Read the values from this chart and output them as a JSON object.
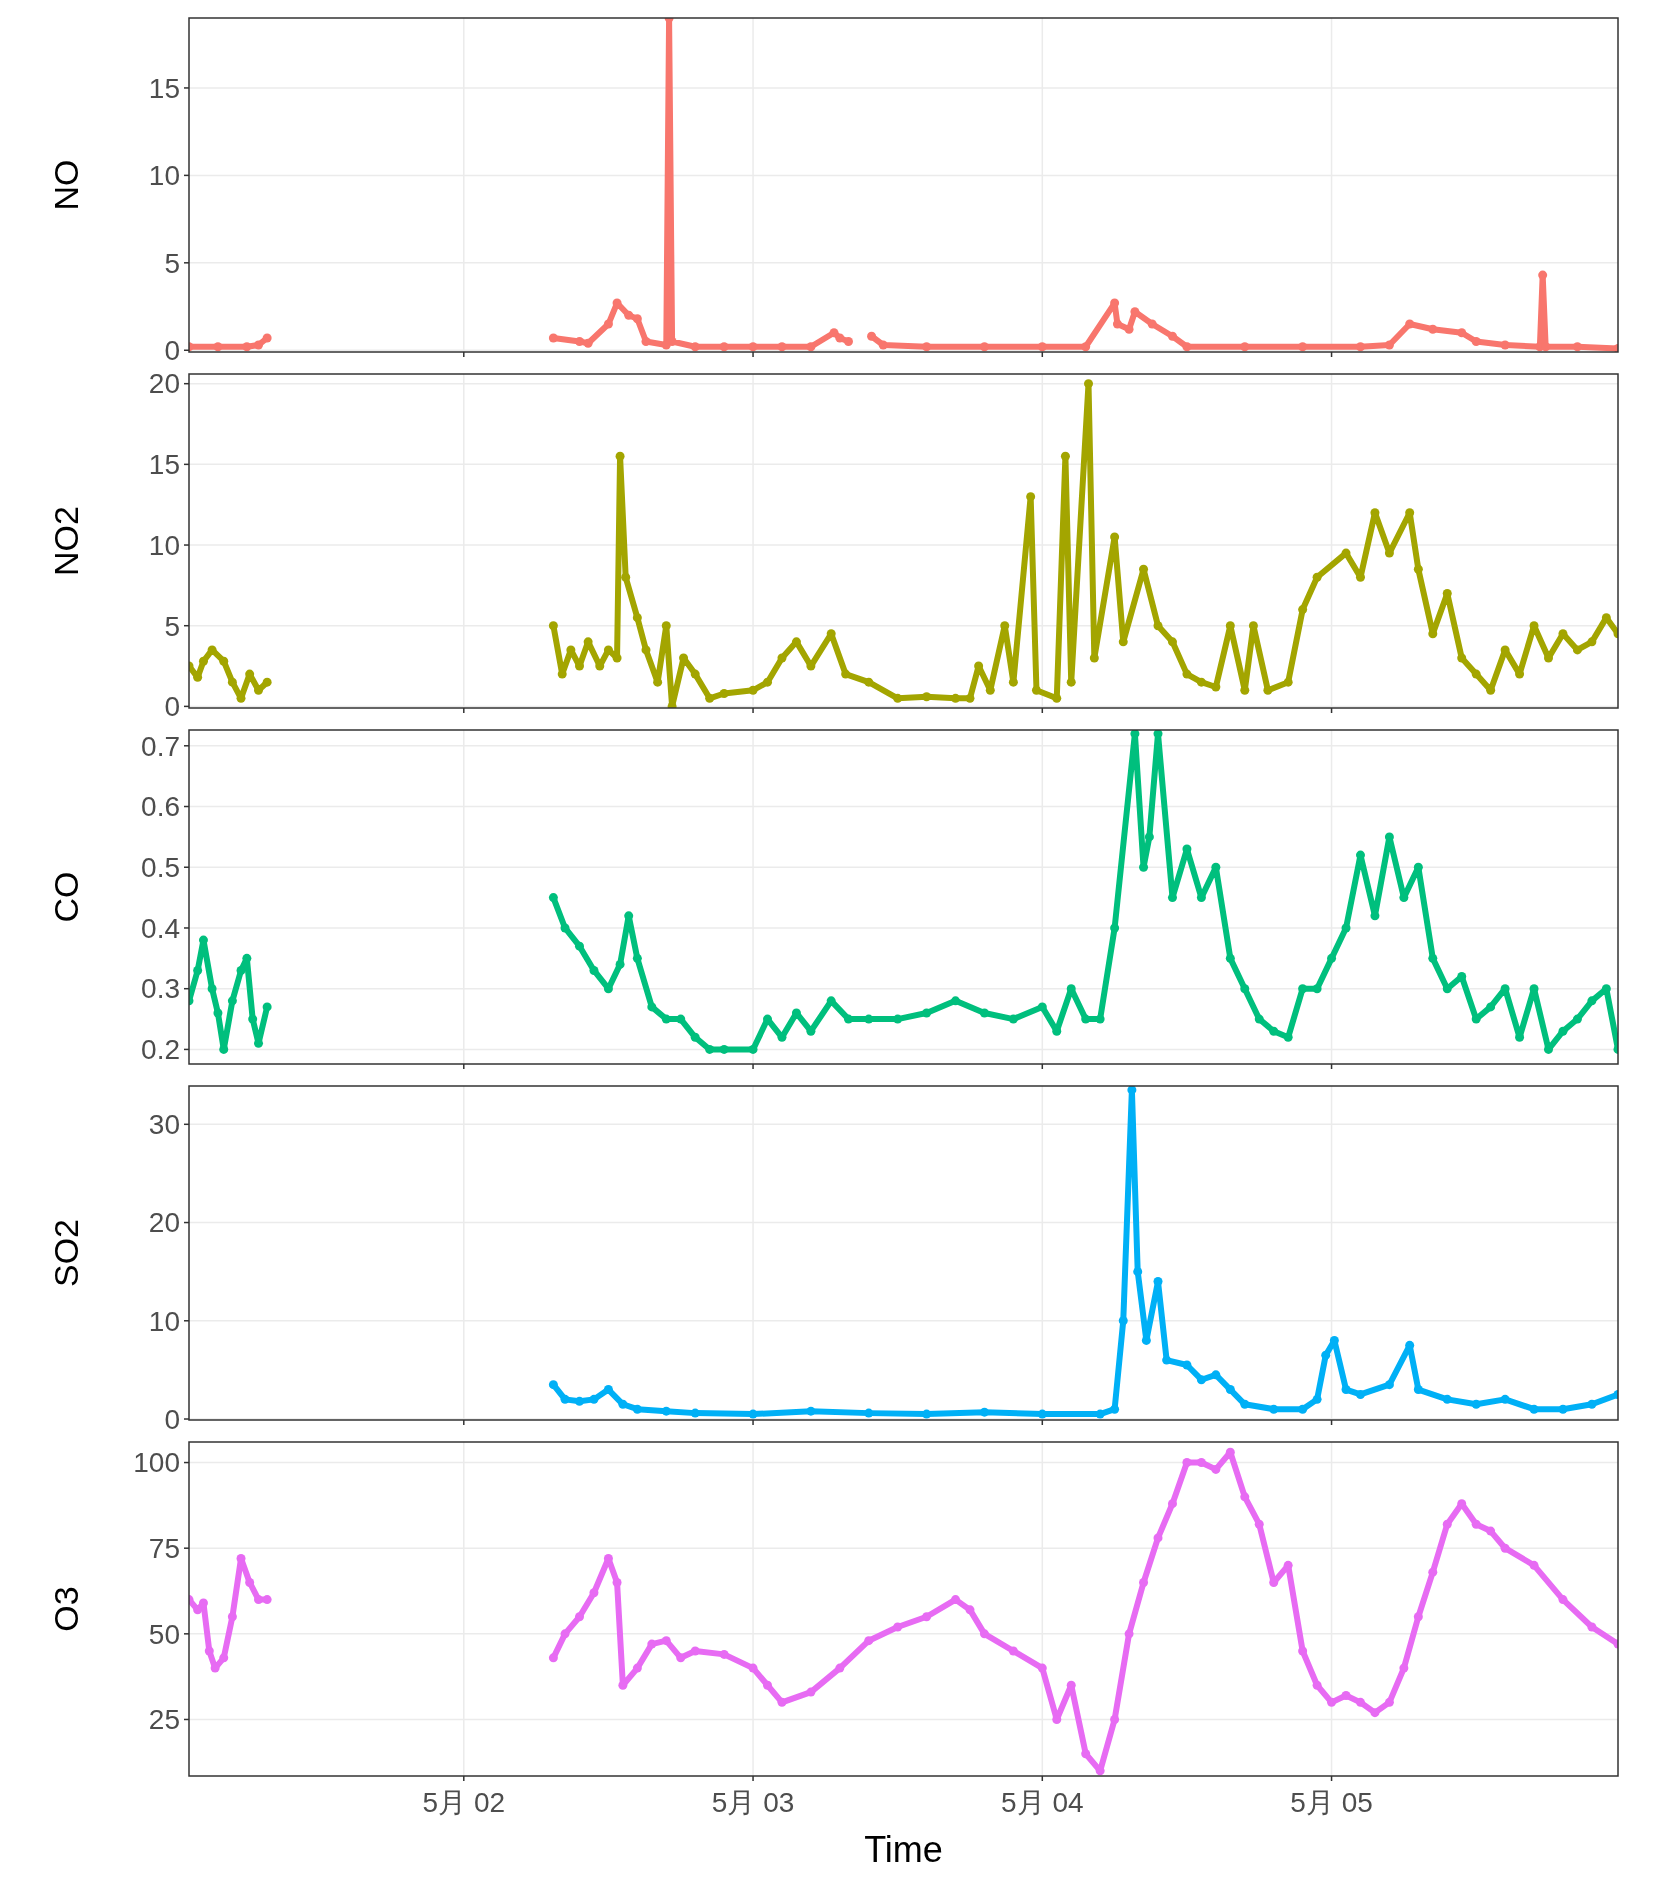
{
  "chart_data": [
    {
      "type": "line",
      "ylabel": "NO",
      "xlim": [
        "--05-01T01:12",
        "--05-05T23:46"
      ],
      "ylim": [
        -0.1,
        19
      ],
      "yticks": [
        0,
        5,
        10,
        15
      ],
      "xticks": [
        {
          "value": "--05-02",
          "label": null
        },
        {
          "value": "--05-03",
          "label": null
        },
        {
          "value": "--05-04",
          "label": null
        },
        {
          "value": "--05-05",
          "label": null
        }
      ],
      "tick_labels": "y",
      "grid": true,
      "marker": "circle",
      "series": [
        {
          "color": "#f8766d",
          "x": [
            "--05-01T01:12",
            "--05-01T03:36",
            "--05-01T06:00",
            "--05-01T06:58",
            "--05-01T07:41",
            "--05-02T00:00",
            "--05-02T07:26",
            "--05-02T09:36",
            "--05-02T10:19",
            "--05-02T12:00",
            "--05-02T12:43",
            "--05-02T13:41",
            "--05-02T14:24",
            "--05-02T15:07",
            "--05-02T16:48",
            "--05-02T17:02",
            "--05-02T17:17",
            "--05-02T19:12",
            "--05-02T21:36",
            "--05-03T00:00",
            "--05-03T02:24",
            "--05-03T04:48",
            "--05-03T06:43",
            "--05-03T07:12",
            "--05-03T07:55",
            "--05-03T08:53",
            "--05-03T09:50",
            "--05-03T10:48",
            "--05-03T14:24",
            "--05-03T19:12",
            "--05-04T00:00",
            "--05-04T03:36",
            "--05-04T06:00",
            "--05-04T06:14",
            "--05-04T07:12",
            "--05-04T07:41",
            "--05-04T09:07",
            "--05-04T10:48",
            "--05-04T12:00",
            "--05-04T16:48",
            "--05-04T21:36",
            "--05-05T02:24",
            "--05-05T04:48",
            "--05-05T06:29",
            "--05-05T08:24",
            "--05-05T10:48",
            "--05-05T12:00",
            "--05-05T14:24",
            "--05-05T17:17",
            "--05-05T17:31",
            "--05-05T17:46",
            "--05-05T20:24",
            "--05-05T23:46"
          ],
          "values": [
            0.2,
            0.2,
            0.2,
            0.3,
            0.7,
            null,
            0.7,
            0.5,
            0.4,
            1.5,
            2.7,
            2.0,
            1.8,
            0.5,
            0.3,
            19,
            0.5,
            0.2,
            0.2,
            0.2,
            0.2,
            0.2,
            1.0,
            0.7,
            0.5,
            null,
            0.8,
            0.3,
            0.2,
            0.2,
            0.2,
            0.2,
            2.7,
            1.5,
            1.2,
            2.2,
            1.5,
            0.8,
            0.2,
            0.2,
            0.2,
            0.2,
            0.3,
            1.5,
            1.2,
            1.0,
            0.5,
            0.3,
            0.2,
            4.3,
            0.2,
            0.2,
            0.1
          ]
        }
      ]
    },
    {
      "type": "line",
      "ylabel": "NO2",
      "xlim": [
        "--05-01T01:12",
        "--05-05T23:46"
      ],
      "ylim": [
        -0.1,
        20.6
      ],
      "yticks": [
        0,
        5,
        10,
        15,
        20
      ],
      "xticks": [
        {
          "value": "--05-02",
          "label": null
        },
        {
          "value": "--05-03",
          "label": null
        },
        {
          "value": "--05-04",
          "label": null
        },
        {
          "value": "--05-05",
          "label": null
        }
      ],
      "tick_labels": "y",
      "grid": true,
      "marker": "circle",
      "series": [
        {
          "color": "#a3a500",
          "x": [
            "--05-01T01:12",
            "--05-01T01:55",
            "--05-01T02:24",
            "--05-01T03:07",
            "--05-01T04:05",
            "--05-01T04:48",
            "--05-01T05:31",
            "--05-01T06:14",
            "--05-01T06:58",
            "--05-01T07:41",
            "--05-02T00:00",
            "--05-02T07:26",
            "--05-02T08:10",
            "--05-02T08:53",
            "--05-02T09:36",
            "--05-02T10:19",
            "--05-02T11:17",
            "--05-02T12:00",
            "--05-02T12:43",
            "--05-02T12:58",
            "--05-02T13:26",
            "--05-02T14:24",
            "--05-02T15:07",
            "--05-02T16:05",
            "--05-02T16:48",
            "--05-02T17:17",
            "--05-02T18:14",
            "--05-02T19:12",
            "--05-02T20:24",
            "--05-02T21:36",
            "--05-03T00:00",
            "--05-03T01:12",
            "--05-03T02:24",
            "--05-03T03:36",
            "--05-03T04:48",
            "--05-03T06:29",
            "--05-03T07:41",
            "--05-03T09:36",
            "--05-03T12:00",
            "--05-03T14:24",
            "--05-03T16:48",
            "--05-03T18:00",
            "--05-03T18:43",
            "--05-03T19:41",
            "--05-03T20:53",
            "--05-03T21:36",
            "--05-03T23:02",
            "--05-03T23:31",
            "--05-04T01:12",
            "--05-04T01:55",
            "--05-04T02:24",
            "--05-04T03:50",
            "--05-04T04:19",
            "--05-04T06:00",
            "--05-04T06:43",
            "--05-04T08:24",
            "--05-04T09:36",
            "--05-04T10:48",
            "--05-04T12:00",
            "--05-04T13:12",
            "--05-04T14:24",
            "--05-04T15:36",
            "--05-04T16:48",
            "--05-04T17:31",
            "--05-04T18:43",
            "--05-04T20:24",
            "--05-04T21:36",
            "--05-04T22:48",
            "--05-05T01:12",
            "--05-05T02:24",
            "--05-05T03:36",
            "--05-05T04:48",
            "--05-05T06:29",
            "--05-05T07:12",
            "--05-05T08:24",
            "--05-05T09:36",
            "--05-05T10:48",
            "--05-05T12:00",
            "--05-05T13:12",
            "--05-05T14:24",
            "--05-05T15:36",
            "--05-05T16:48",
            "--05-05T18:00",
            "--05-05T19:12",
            "--05-05T20:24",
            "--05-05T21:36",
            "--05-05T22:48",
            "--05-05T23:46"
          ],
          "values": [
            2.5,
            1.8,
            2.8,
            3.5,
            2.8,
            1.5,
            0.5,
            2.0,
            1.0,
            1.5,
            null,
            5.0,
            2.0,
            3.5,
            2.5,
            4.0,
            2.5,
            3.5,
            3.0,
            15.5,
            8.0,
            5.5,
            3.5,
            1.5,
            5.0,
            0,
            3.0,
            2.0,
            0.5,
            0.8,
            1.0,
            1.5,
            3.0,
            4.0,
            2.5,
            4.5,
            2.0,
            1.5,
            0.5,
            0.6,
            0.5,
            0.5,
            2.5,
            1.0,
            5.0,
            1.5,
            13.0,
            1.0,
            0.5,
            15.5,
            1.5,
            20,
            3.0,
            10.5,
            4.0,
            8.5,
            5.0,
            4.0,
            2.0,
            1.5,
            1.2,
            5.0,
            1.0,
            5.0,
            1.0,
            1.5,
            6.0,
            8.0,
            9.5,
            8.0,
            12.0,
            9.5,
            12.0,
            8.5,
            4.5,
            7.0,
            3.0,
            2.0,
            1.0,
            3.5,
            2.0,
            5.0,
            3.0,
            4.5,
            3.5,
            4.0,
            5.5,
            4.5
          ]
        }
      ]
    },
    {
      "type": "line",
      "ylabel": "CO",
      "xlim": [
        "--05-01T01:12",
        "--05-05T23:46"
      ],
      "ylim": [
        0.176,
        0.726
      ],
      "yticks": [
        0.2,
        0.3,
        0.4,
        0.5,
        0.6,
        0.7
      ],
      "xticks": [
        {
          "value": "--05-02",
          "label": null
        },
        {
          "value": "--05-03",
          "label": null
        },
        {
          "value": "--05-04",
          "label": null
        },
        {
          "value": "--05-05",
          "label": null
        }
      ],
      "tick_labels": "y",
      "grid": true,
      "marker": "circle",
      "series": [
        {
          "color": "#00bf7d",
          "x": [
            "--05-01T01:12",
            "--05-01T01:55",
            "--05-01T02:24",
            "--05-01T03:07",
            "--05-01T03:36",
            "--05-01T04:05",
            "--05-01T04:48",
            "--05-01T05:31",
            "--05-01T06:00",
            "--05-01T06:29",
            "--05-01T06:58",
            "--05-01T07:41",
            "--05-02T00:00",
            "--05-02T07:26",
            "--05-02T08:24",
            "--05-02T09:36",
            "--05-02T10:48",
            "--05-02T12:00",
            "--05-02T12:58",
            "--05-02T13:41",
            "--05-02T14:24",
            "--05-02T15:36",
            "--05-02T16:48",
            "--05-02T18:00",
            "--05-02T19:12",
            "--05-02T20:24",
            "--05-02T21:36",
            "--05-03T00:00",
            "--05-03T01:12",
            "--05-03T02:24",
            "--05-03T03:36",
            "--05-03T04:48",
            "--05-03T06:29",
            "--05-03T07:55",
            "--05-03T09:36",
            "--05-03T12:00",
            "--05-03T14:24",
            "--05-03T16:48",
            "--05-03T19:12",
            "--05-03T21:36",
            "--05-04T00:00",
            "--05-04T01:12",
            "--05-04T02:24",
            "--05-04T03:36",
            "--05-04T04:48",
            "--05-04T06:00",
            "--05-04T07:41",
            "--05-04T08:24",
            "--05-04T08:53",
            "--05-04T09:36",
            "--05-04T10:48",
            "--05-04T12:00",
            "--05-04T13:12",
            "--05-04T14:24",
            "--05-04T15:36",
            "--05-04T16:48",
            "--05-04T18:00",
            "--05-04T19:12",
            "--05-04T20:24",
            "--05-04T21:36",
            "--05-04T22:48",
            "--05-05T00:00",
            "--05-05T01:12",
            "--05-05T02:24",
            "--05-05T03:36",
            "--05-05T04:48",
            "--05-05T06:00",
            "--05-05T07:12",
            "--05-05T08:24",
            "--05-05T09:36",
            "--05-05T10:48",
            "--05-05T12:00",
            "--05-05T13:12",
            "--05-05T14:24",
            "--05-05T15:36",
            "--05-05T16:48",
            "--05-05T18:00",
            "--05-05T19:12",
            "--05-05T20:24",
            "--05-05T21:36",
            "--05-05T22:48",
            "--05-05T23:46"
          ],
          "values": [
            0.28,
            0.33,
            0.38,
            0.3,
            0.26,
            0.2,
            0.28,
            0.33,
            0.35,
            0.25,
            0.21,
            0.27,
            null,
            0.45,
            0.4,
            0.37,
            0.33,
            0.3,
            0.34,
            0.42,
            0.35,
            0.27,
            0.25,
            0.25,
            0.22,
            0.2,
            0.2,
            0.2,
            0.25,
            0.22,
            0.26,
            0.23,
            0.28,
            0.25,
            0.25,
            0.25,
            0.26,
            0.28,
            0.26,
            0.25,
            0.27,
            0.23,
            0.3,
            0.25,
            0.25,
            0.4,
            0.72,
            0.5,
            0.55,
            0.72,
            0.45,
            0.53,
            0.45,
            0.5,
            0.35,
            0.3,
            0.25,
            0.23,
            0.22,
            0.3,
            0.3,
            0.35,
            0.4,
            0.52,
            0.42,
            0.55,
            0.45,
            0.5,
            0.35,
            0.3,
            0.32,
            0.25,
            0.27,
            0.3,
            0.22,
            0.3,
            0.2,
            0.23,
            0.25,
            0.28,
            0.3,
            0.2
          ]
        }
      ]
    },
    {
      "type": "line",
      "ylabel": "SO2",
      "xlim": [
        "--05-01T01:12",
        "--05-05T23:46"
      ],
      "ylim": [
        -0.1,
        33.9
      ],
      "yticks": [
        0,
        10,
        20,
        30
      ],
      "xticks": [
        {
          "value": "--05-02",
          "label": null
        },
        {
          "value": "--05-03",
          "label": null
        },
        {
          "value": "--05-04",
          "label": null
        },
        {
          "value": "--05-05",
          "label": null
        }
      ],
      "tick_labels": "y",
      "grid": true,
      "marker": "circle",
      "series": [
        {
          "color": "#00b0f6",
          "x": [
            "--05-02T07:26",
            "--05-02T08:24",
            "--05-02T09:36",
            "--05-02T10:48",
            "--05-02T12:00",
            "--05-02T13:12",
            "--05-02T14:24",
            "--05-02T16:48",
            "--05-02T19:12",
            "--05-03T00:00",
            "--05-03T04:48",
            "--05-03T09:36",
            "--05-03T14:24",
            "--05-03T19:12",
            "--05-04T00:00",
            "--05-04T04:48",
            "--05-04T06:00",
            "--05-04T06:43",
            "--05-04T07:26",
            "--05-04T07:55",
            "--05-04T08:38",
            "--05-04T09:36",
            "--05-04T10:19",
            "--05-04T12:00",
            "--05-04T13:12",
            "--05-04T14:24",
            "--05-04T15:36",
            "--05-04T16:48",
            "--05-04T19:12",
            "--05-04T21:36",
            "--05-04T22:48",
            "--05-04T23:31",
            "--05-05T00:14",
            "--05-05T01:12",
            "--05-05T02:24",
            "--05-05T04:48",
            "--05-05T06:29",
            "--05-05T07:12",
            "--05-05T09:36",
            "--05-05T12:00",
            "--05-05T14:24",
            "--05-05T16:48",
            "--05-05T19:12",
            "--05-05T21:36",
            "--05-05T23:46"
          ],
          "values": [
            3.5,
            2.0,
            1.8,
            2.0,
            3.0,
            1.5,
            1.0,
            0.8,
            0.6,
            0.5,
            0.8,
            0.6,
            0.5,
            0.7,
            0.5,
            0.5,
            1.0,
            10,
            33.5,
            15,
            8,
            14,
            6,
            5.5,
            4,
            4.5,
            3,
            1.5,
            1.0,
            1.0,
            2.0,
            6.5,
            8.0,
            3.0,
            2.5,
            3.5,
            7.5,
            3.0,
            2.0,
            1.5,
            2.0,
            1.0,
            1.0,
            1.5,
            2.5
          ]
        }
      ]
    },
    {
      "type": "line",
      "ylabel": "O3",
      "xlabel": "Time",
      "xlim": [
        "--05-01T01:12",
        "--05-05T23:46"
      ],
      "ylim": [
        8.5,
        106
      ],
      "yticks": [
        25,
        50,
        75,
        100
      ],
      "xticks": [
        {
          "value": "--05-02",
          "label": "5月 02"
        },
        {
          "value": "--05-03",
          "label": "5月 03"
        },
        {
          "value": "--05-04",
          "label": "5月 04"
        },
        {
          "value": "--05-05",
          "label": "5月 05"
        }
      ],
      "grid": true,
      "marker": "circle",
      "series": [
        {
          "color": "#e76bf3",
          "x": [
            "--05-01T01:12",
            "--05-01T01:55",
            "--05-01T02:24",
            "--05-01T02:53",
            "--05-01T03:22",
            "--05-01T04:05",
            "--05-01T04:48",
            "--05-01T05:31",
            "--05-01T06:14",
            "--05-01T06:58",
            "--05-01T07:41",
            "--05-02T00:00",
            "--05-02T07:26",
            "--05-02T08:24",
            "--05-02T09:36",
            "--05-02T10:48",
            "--05-02T12:00",
            "--05-02T12:43",
            "--05-02T13:12",
            "--05-02T14:24",
            "--05-02T15:36",
            "--05-02T16:48",
            "--05-02T18:00",
            "--05-02T19:12",
            "--05-02T21:36",
            "--05-03T00:00",
            "--05-03T01:12",
            "--05-03T02:24",
            "--05-03T04:48",
            "--05-03T07:12",
            "--05-03T09:36",
            "--05-03T12:00",
            "--05-03T14:24",
            "--05-03T16:48",
            "--05-03T18:00",
            "--05-03T19:12",
            "--05-03T21:36",
            "--05-04T00:00",
            "--05-04T01:12",
            "--05-04T02:24",
            "--05-04T03:36",
            "--05-04T04:48",
            "--05-04T06:00",
            "--05-04T07:12",
            "--05-04T08:24",
            "--05-04T09:36",
            "--05-04T10:48",
            "--05-04T12:00",
            "--05-04T13:12",
            "--05-04T14:24",
            "--05-04T15:36",
            "--05-04T16:48",
            "--05-04T18:00",
            "--05-04T19:12",
            "--05-04T20:24",
            "--05-04T21:36",
            "--05-04T22:48",
            "--05-05T00:00",
            "--05-05T01:12",
            "--05-05T02:24",
            "--05-05T03:36",
            "--05-05T04:48",
            "--05-05T06:00",
            "--05-05T07:12",
            "--05-05T08:24",
            "--05-05T09:36",
            "--05-05T10:48",
            "--05-05T12:00",
            "--05-05T13:12",
            "--05-05T14:24",
            "--05-05T16:48",
            "--05-05T19:12",
            "--05-05T21:36",
            "--05-05T23:46"
          ],
          "values": [
            60,
            57,
            59,
            45,
            40,
            43,
            55,
            72,
            65,
            60,
            60,
            null,
            43,
            50,
            55,
            62,
            72,
            65,
            35,
            40,
            47,
            48,
            43,
            45,
            44,
            40,
            35,
            30,
            33,
            40,
            48,
            52,
            55,
            60,
            57,
            50,
            45,
            40,
            25,
            35,
            15,
            10,
            25,
            50,
            65,
            78,
            88,
            100,
            100,
            98,
            103,
            90,
            82,
            65,
            70,
            45,
            35,
            30,
            32,
            30,
            27,
            30,
            40,
            55,
            68,
            82,
            88,
            82,
            80,
            75,
            70,
            60,
            52,
            47
          ]
        }
      ]
    }
  ]
}
